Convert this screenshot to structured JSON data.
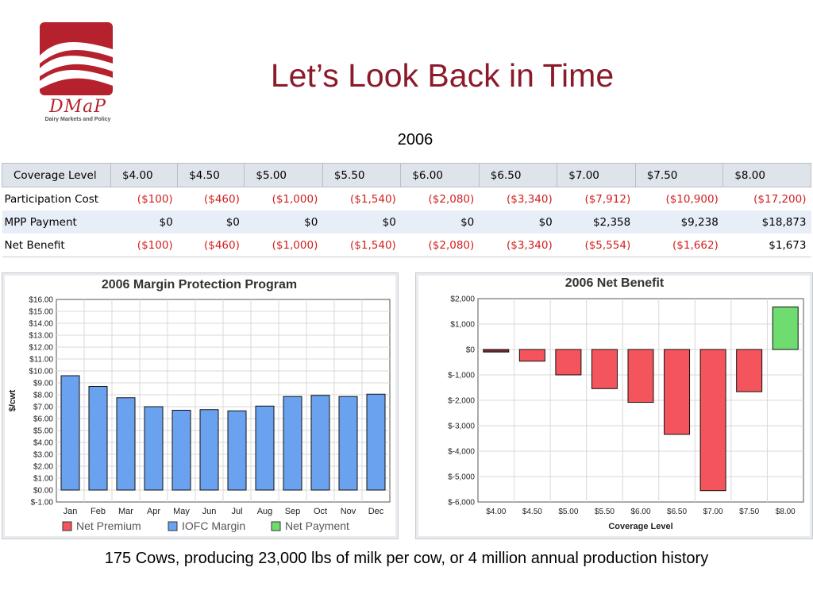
{
  "logo": {
    "text": "DMaP",
    "subtitle": "Dairy Markets and Policy"
  },
  "title": "Let’s Look Back in Time",
  "year": "2006",
  "table": {
    "header": [
      "Coverage Level",
      "$4.00",
      "$4.50",
      "$5.00",
      "$5.50",
      "$6.00",
      "$6.50",
      "$7.00",
      "$7.50",
      "$8.00"
    ],
    "rows": [
      {
        "label": "Participation Cost",
        "values": [
          "($100)",
          "($460)",
          "($1,000)",
          "($1,540)",
          "($2,080)",
          "($3,340)",
          "($7,912)",
          "($10,900)",
          "($17,200)"
        ]
      },
      {
        "label": "MPP Payment",
        "values": [
          "$0",
          "$0",
          "$0",
          "$0",
          "$0",
          "$0",
          "$2,358",
          "$9,238",
          "$18,873"
        ]
      },
      {
        "label": "Net Benefit",
        "values": [
          "($100)",
          "($460)",
          "($1,000)",
          "($1,540)",
          "($2,080)",
          "($3,340)",
          "($5,554)",
          "($1,662)",
          "$1,673"
        ]
      }
    ]
  },
  "colors": {
    "iofc": "#6aa2f0",
    "premium": "#f4545c",
    "payment": "#6fdc6f",
    "title": "#8b1a2b",
    "negative": "#d21e1e"
  },
  "chart_data": [
    {
      "type": "bar",
      "title": "2006 Margin Protection Program",
      "xlabel": "",
      "ylabel": "$/cwt",
      "ylim": [
        -1,
        16
      ],
      "yticks": [
        "$-1.00",
        "$0.00",
        "$1.00",
        "$2.00",
        "$3.00",
        "$4.00",
        "$5.00",
        "$6.00",
        "$7.00",
        "$8.00",
        "$9.00",
        "$10.00",
        "$11.00",
        "$12.00",
        "$13.00",
        "$14.00",
        "$15.00",
        "$16.00"
      ],
      "categories": [
        "Jan",
        "Feb",
        "Mar",
        "Apr",
        "May",
        "Jun",
        "Jul",
        "Aug",
        "Sep",
        "Oct",
        "Nov",
        "Dec"
      ],
      "series": [
        {
          "name": "Net Premium",
          "values": [
            0,
            0,
            0,
            0,
            0,
            0,
            0,
            0,
            0,
            0,
            0,
            0
          ]
        },
        {
          "name": "IOFC Margin",
          "values": [
            9.6,
            8.7,
            7.75,
            7.0,
            6.7,
            6.75,
            6.65,
            7.05,
            7.85,
            7.95,
            7.85,
            8.05
          ]
        },
        {
          "name": "Net Payment",
          "values": [
            0,
            0,
            0,
            0,
            0,
            0,
            0,
            0,
            0,
            0,
            0,
            0
          ]
        }
      ],
      "legend": "bottom",
      "grid": true
    },
    {
      "type": "bar",
      "title": "2006 Net Benefit",
      "xlabel": "Coverage Level",
      "ylabel": "",
      "ylim": [
        -6000,
        2000
      ],
      "yticks": [
        "$2,000",
        "$1,000",
        "$0",
        "$-1,000",
        "$-2,000",
        "$-3,000",
        "$-4,000",
        "$-5,000",
        "$-6,000"
      ],
      "categories": [
        "$4.00",
        "$4.50",
        "$5.00",
        "$5.50",
        "$6.00",
        "$6.50",
        "$7.00",
        "$7.50",
        "$8.00"
      ],
      "values": [
        -100,
        -460,
        -1000,
        -1540,
        -2080,
        -3340,
        -5554,
        -1662,
        1673
      ],
      "grid": true
    }
  ],
  "footer": "175 Cows, producing 23,000 lbs of milk per cow, or 4 million annual production history"
}
